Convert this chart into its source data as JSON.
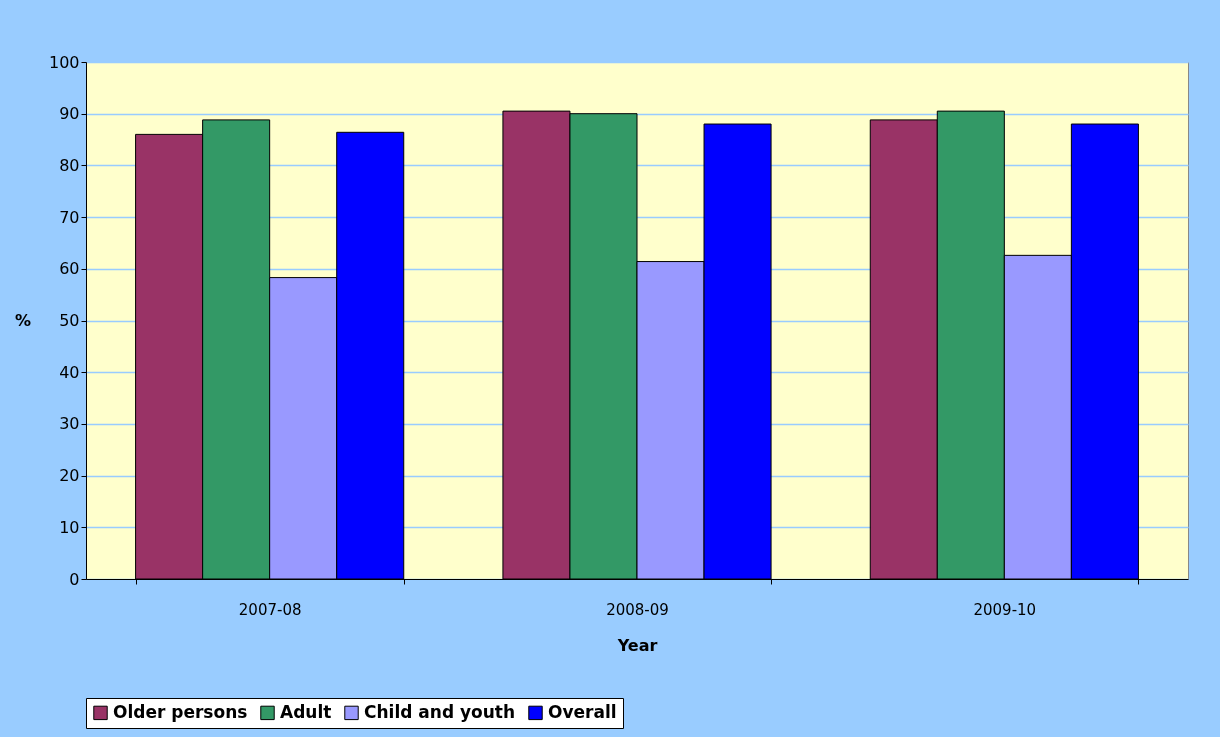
{
  "chart_data": {
    "type": "bar",
    "xlabel": "Year",
    "ylabel": "%",
    "categories": [
      "2007-08",
      "2008-09",
      "2009-10"
    ],
    "series": [
      {
        "name": "Older persons",
        "color": "#993366",
        "values": [
          86.0,
          90.5,
          88.8
        ]
      },
      {
        "name": "Adult",
        "color": "#339966",
        "values": [
          88.8,
          90.0,
          90.5
        ]
      },
      {
        "name": "Child and youth",
        "color": "#9999ff",
        "values": [
          58.3,
          61.4,
          62.6
        ]
      },
      {
        "name": "Overall",
        "color": "#0000ff",
        "values": [
          86.4,
          88.0,
          88.0
        ]
      }
    ],
    "ylim": [
      0,
      100
    ],
    "yticks": [
      0,
      10,
      20,
      30,
      40,
      50,
      60,
      70,
      80,
      90,
      100
    ],
    "grid": "y",
    "legend": "bottom"
  }
}
